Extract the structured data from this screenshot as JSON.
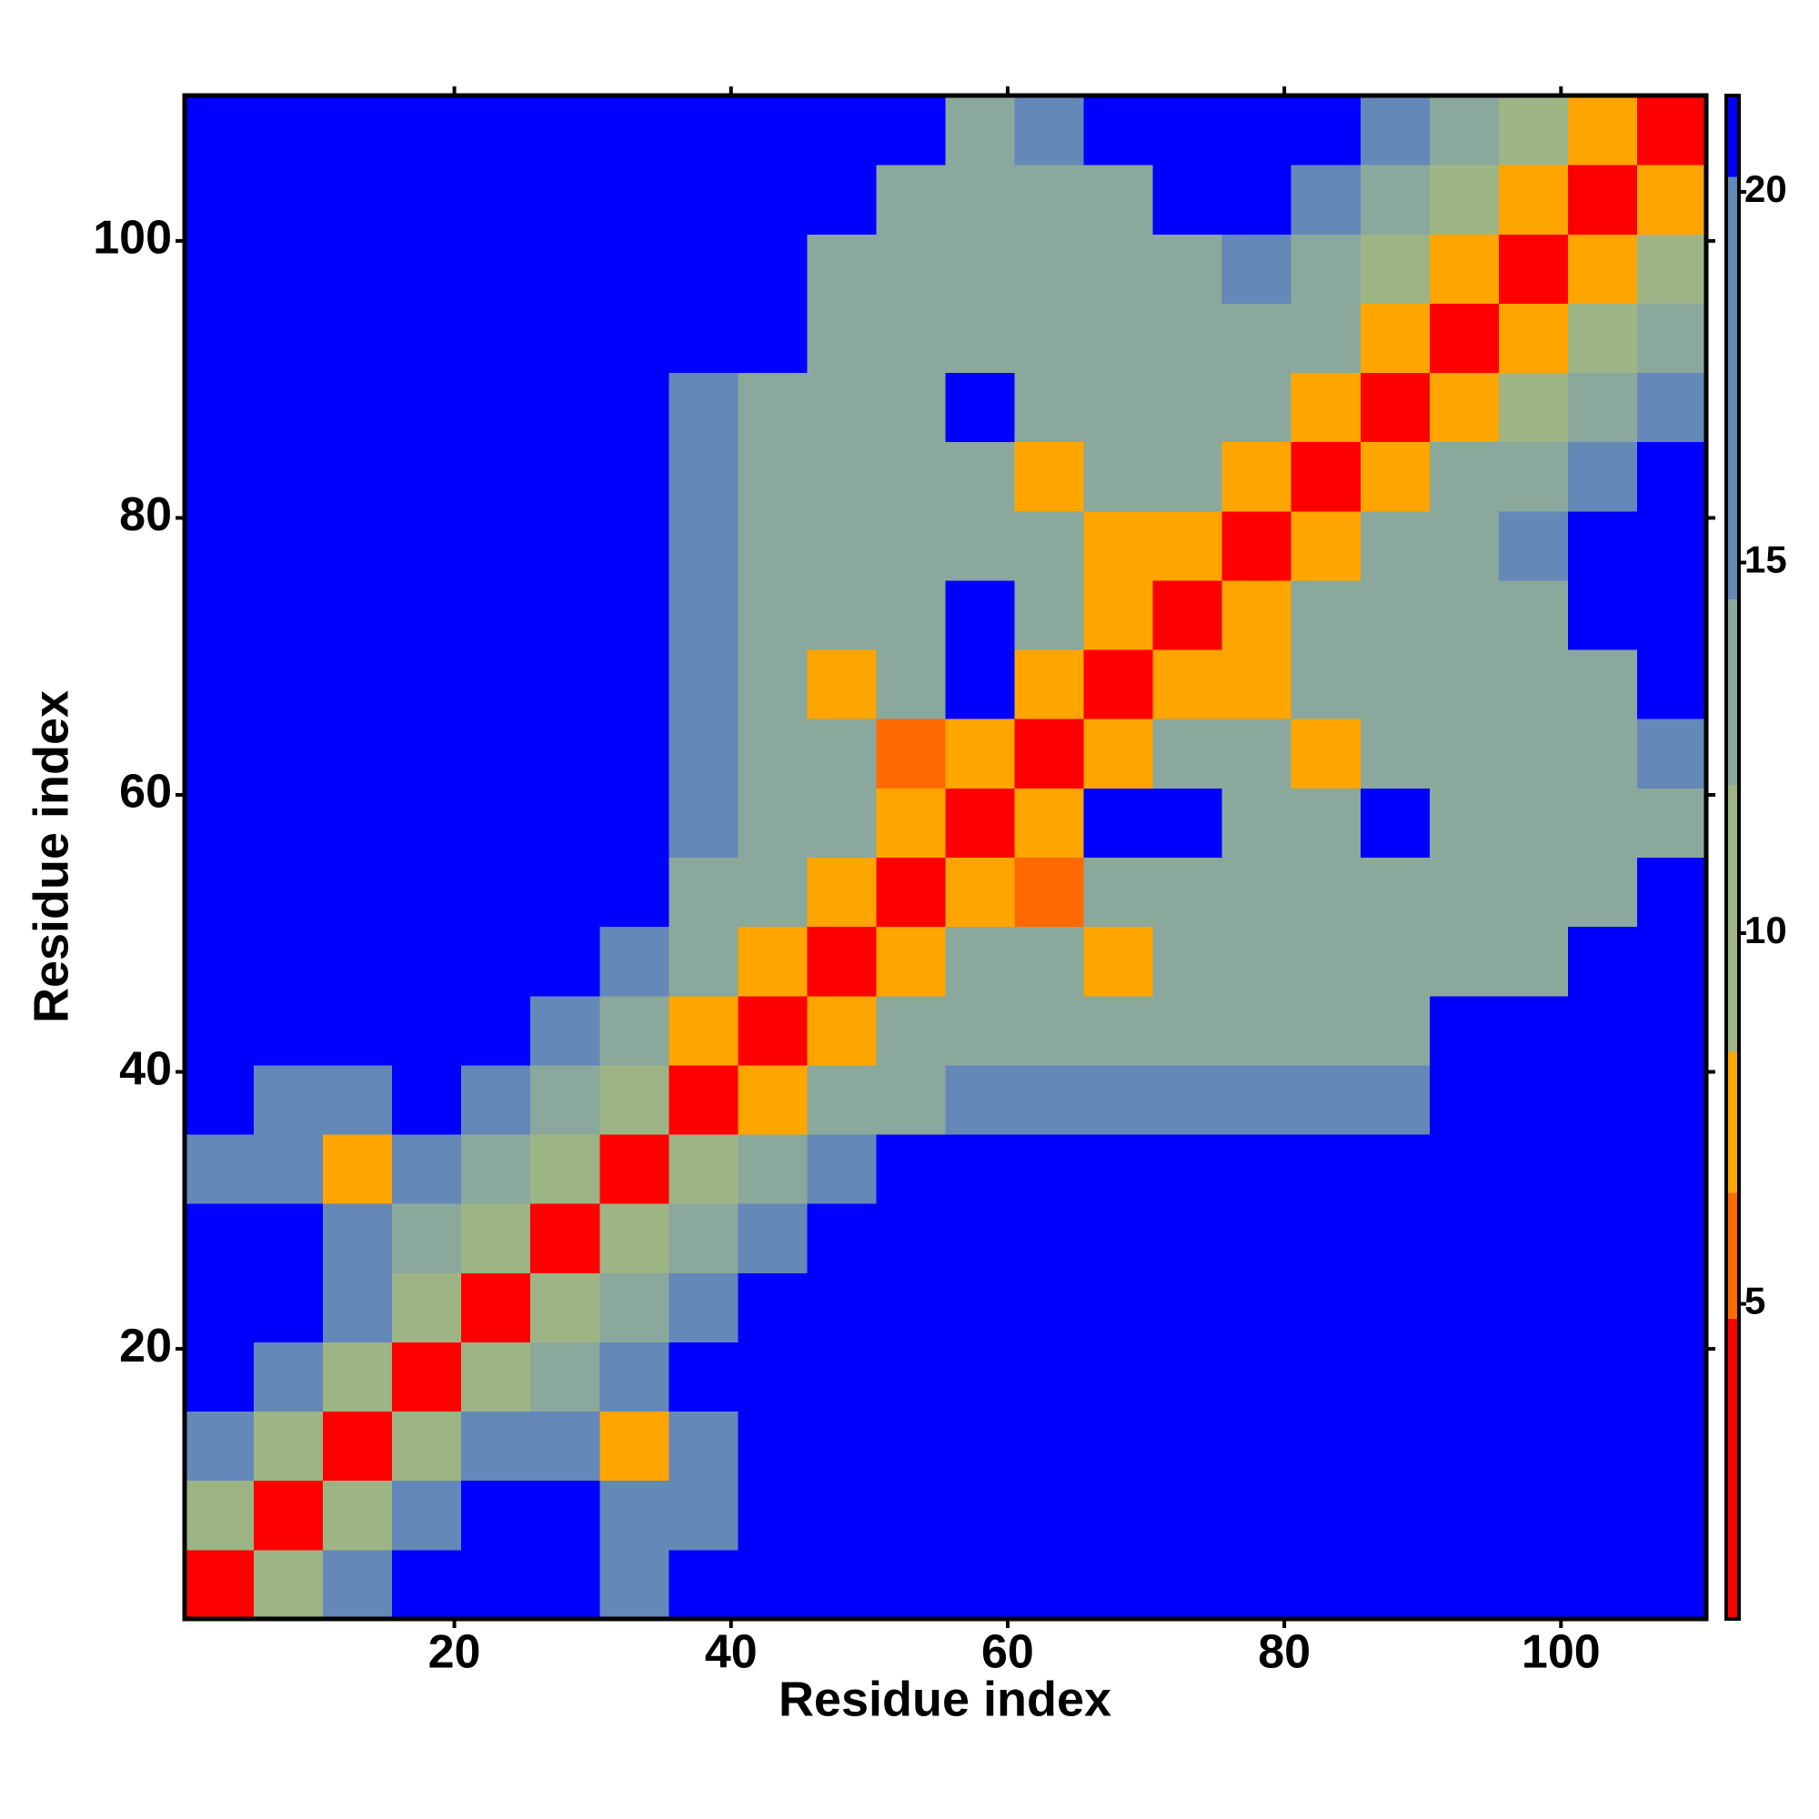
{
  "chart_data": {
    "type": "heatmap",
    "x_label": "Residue index",
    "y_label": "Residue index",
    "x": [
      3,
      8,
      13,
      18,
      23,
      28,
      33,
      38,
      43,
      48,
      53,
      58,
      63,
      68,
      73,
      78,
      83,
      88,
      93,
      98,
      103,
      108
    ],
    "y": [
      3,
      8,
      13,
      18,
      23,
      28,
      33,
      38,
      43,
      48,
      53,
      58,
      63,
      68,
      73,
      78,
      83,
      88,
      93,
      98,
      103,
      108
    ],
    "z": [
      [
        2,
        9,
        15,
        21,
        21,
        21,
        18,
        21,
        21,
        21,
        21,
        21,
        21,
        21,
        21,
        21,
        21,
        21,
        21,
        21,
        21,
        21
      ],
      [
        9,
        2,
        9,
        15,
        21,
        21,
        16,
        17,
        21,
        21,
        21,
        21,
        21,
        21,
        21,
        21,
        21,
        21,
        21,
        21,
        21,
        21
      ],
      [
        15,
        9,
        2,
        9,
        15,
        17,
        7,
        17,
        21,
        21,
        21,
        21,
        21,
        21,
        21,
        21,
        21,
        21,
        21,
        21,
        21,
        21
      ],
      [
        21,
        15,
        9,
        2,
        9,
        14,
        16,
        21,
        21,
        21,
        21,
        21,
        21,
        21,
        21,
        21,
        21,
        21,
        21,
        21,
        21,
        21
      ],
      [
        21,
        21,
        15,
        9,
        2,
        9,
        14,
        16,
        21,
        21,
        21,
        21,
        21,
        21,
        21,
        21,
        21,
        21,
        21,
        21,
        21,
        21
      ],
      [
        21,
        21,
        17,
        14,
        9,
        2,
        9,
        14,
        16,
        21,
        21,
        21,
        21,
        21,
        21,
        21,
        21,
        21,
        21,
        21,
        21,
        21
      ],
      [
        18,
        16,
        7,
        16,
        14,
        9,
        2,
        9,
        14,
        16,
        21,
        21,
        21,
        21,
        21,
        21,
        21,
        21,
        21,
        21,
        21,
        21
      ],
      [
        21,
        17,
        17,
        21,
        16,
        14,
        9,
        2,
        7,
        14,
        14,
        15,
        15,
        15,
        15,
        15,
        15,
        15,
        21,
        21,
        21,
        21
      ],
      [
        21,
        21,
        21,
        21,
        21,
        16,
        14,
        7,
        2,
        7,
        13,
        14,
        14,
        14,
        14,
        14,
        14,
        14,
        21,
        21,
        21,
        21
      ],
      [
        21,
        21,
        21,
        21,
        21,
        21,
        16,
        14,
        7,
        2,
        7,
        13,
        14,
        7,
        14,
        14,
        14,
        14,
        14,
        14,
        21,
        21
      ],
      [
        21,
        21,
        21,
        21,
        21,
        21,
        21,
        14,
        13,
        7,
        2,
        7,
        6,
        14,
        14,
        14,
        14,
        14,
        14,
        14,
        14,
        21
      ],
      [
        21,
        21,
        21,
        21,
        21,
        21,
        21,
        15,
        14,
        13,
        7,
        2,
        7,
        21,
        21,
        14,
        14,
        21,
        14,
        14,
        14,
        14
      ],
      [
        21,
        21,
        21,
        21,
        21,
        21,
        21,
        15,
        14,
        14,
        6,
        7,
        2,
        7,
        13,
        14,
        7,
        14,
        14,
        14,
        14,
        16
      ],
      [
        21,
        21,
        21,
        21,
        21,
        21,
        21,
        15,
        14,
        7,
        14,
        21,
        7,
        2,
        7,
        7,
        14,
        14,
        14,
        14,
        14,
        21
      ],
      [
        21,
        21,
        21,
        21,
        21,
        21,
        21,
        15,
        14,
        14,
        14,
        21,
        13,
        7,
        2,
        7,
        13,
        14,
        14,
        14,
        21,
        21
      ],
      [
        21,
        21,
        21,
        21,
        21,
        21,
        21,
        15,
        14,
        14,
        14,
        14,
        14,
        7,
        7,
        2,
        7,
        13,
        14,
        15,
        21,
        21
      ],
      [
        21,
        21,
        21,
        21,
        21,
        21,
        21,
        15,
        14,
        14,
        14,
        14,
        7,
        14,
        13,
        7,
        2,
        7,
        13,
        14,
        15,
        21
      ],
      [
        21,
        21,
        21,
        21,
        21,
        21,
        21,
        15,
        14,
        14,
        14,
        21,
        14,
        14,
        14,
        13,
        7,
        2,
        7,
        11,
        14,
        15
      ],
      [
        21,
        21,
        21,
        21,
        21,
        21,
        21,
        21,
        21,
        14,
        14,
        14,
        14,
        14,
        14,
        14,
        13,
        7,
        2,
        7,
        11,
        14
      ],
      [
        21,
        21,
        21,
        21,
        21,
        21,
        21,
        21,
        21,
        14,
        14,
        14,
        14,
        14,
        14,
        15,
        14,
        11,
        7,
        2,
        7,
        11
      ],
      [
        21,
        21,
        21,
        21,
        21,
        21,
        21,
        21,
        21,
        21,
        14,
        14,
        14,
        14,
        21,
        21,
        15,
        14,
        11,
        7,
        2,
        7
      ],
      [
        21,
        21,
        21,
        21,
        21,
        21,
        21,
        21,
        21,
        21,
        21,
        14,
        16,
        21,
        21,
        21,
        21,
        15,
        14,
        11,
        7,
        2
      ]
    ],
    "xlim": [
      0.5,
      110.5
    ],
    "ylim": [
      0.5,
      110.5
    ],
    "xticks": [
      20,
      40,
      60,
      80,
      100
    ],
    "yticks": [
      20,
      40,
      60,
      80,
      100
    ],
    "colorbar": {
      "zlim": [
        0.75,
        21.3
      ],
      "ticks": [
        5,
        10,
        15,
        20
      ],
      "bands": [
        {
          "from": 0.75,
          "to": 4.8,
          "color": "#ff0000"
        },
        {
          "from": 4.8,
          "to": 6.5,
          "color": "#ff6a00"
        },
        {
          "from": 6.5,
          "to": 8.4,
          "color": "#ffa500"
        },
        {
          "from": 8.4,
          "to": 12,
          "color": "#9db585"
        },
        {
          "from": 12,
          "to": 14.5,
          "color": "#8aa89c"
        },
        {
          "from": 14.5,
          "to": 20.2,
          "color": "#6488b8"
        },
        {
          "from": 20.2,
          "to": 21.3,
          "color": "#0000ff"
        }
      ]
    }
  }
}
